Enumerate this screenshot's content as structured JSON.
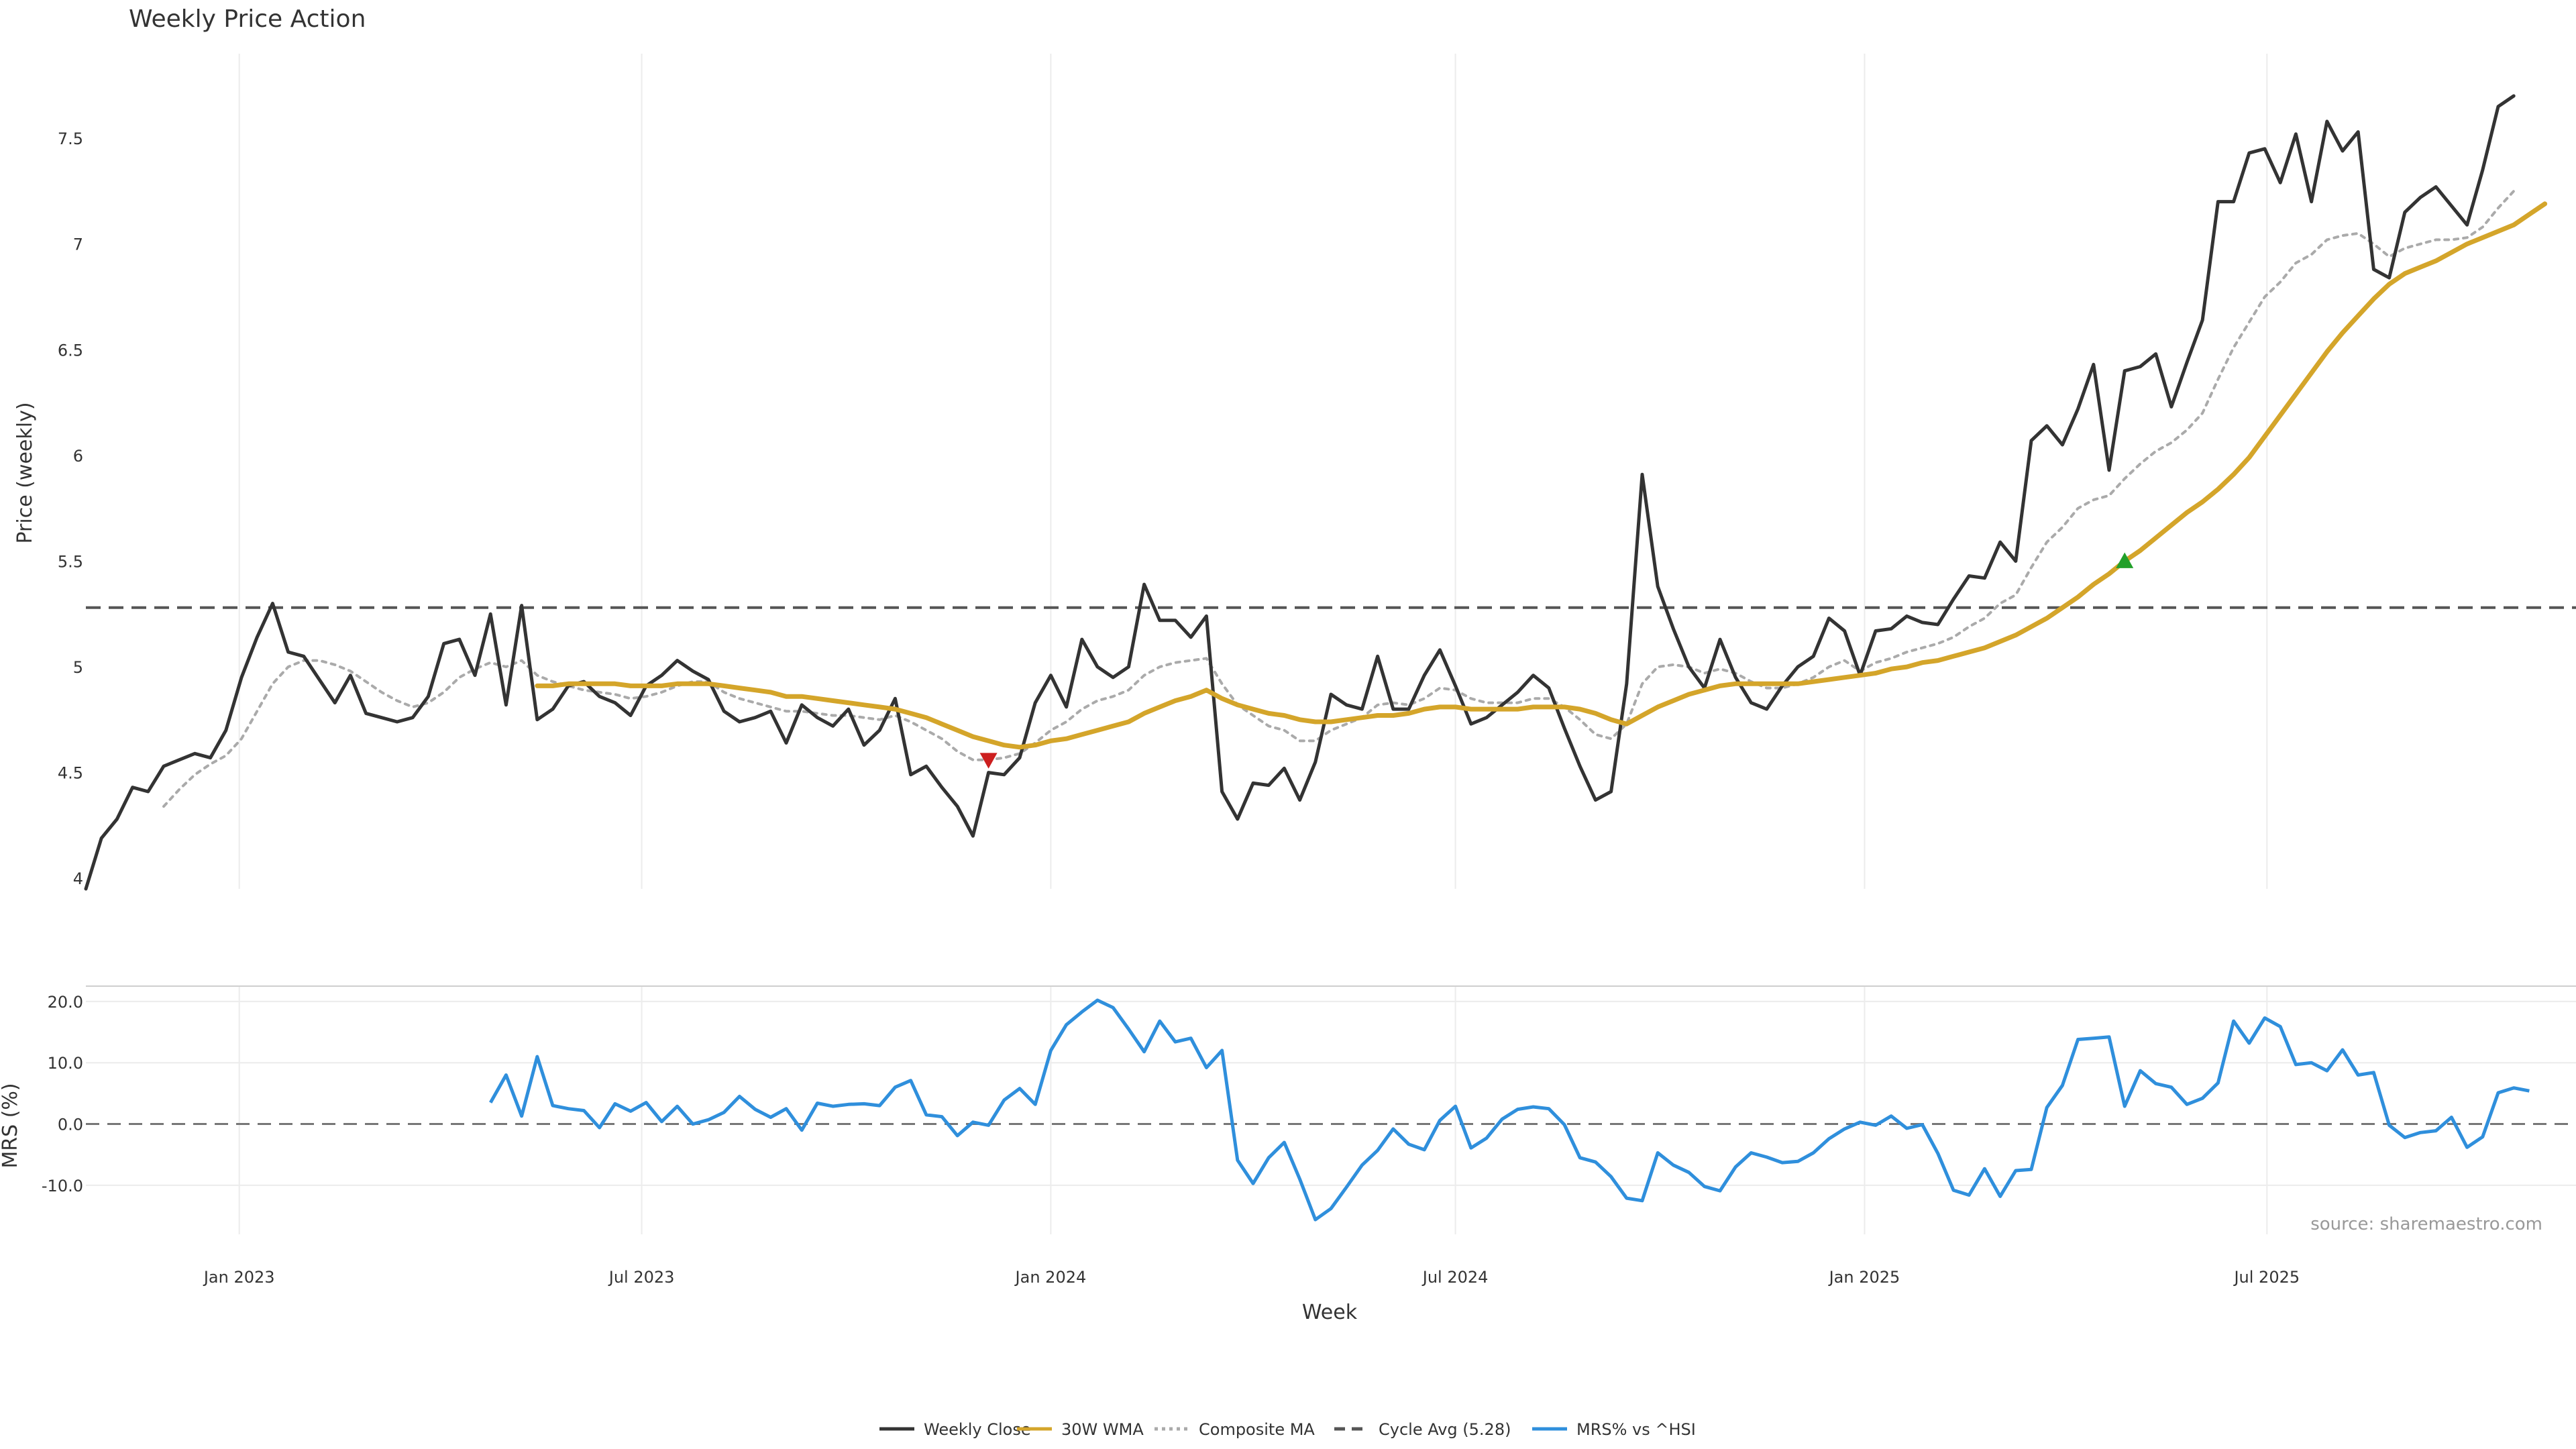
{
  "chart_data": [
    {
      "type": "line",
      "title": "Weekly Price Action",
      "ylabel": "Price (weekly)",
      "xlabel": "Week",
      "ylim": [
        3.95,
        7.9
      ],
      "x_range": [
        "2022-10-24",
        "2025-11-17"
      ],
      "yticks": [
        {
          "value": 4,
          "label": "4"
        },
        {
          "value": 4.5,
          "label": "4.5"
        },
        {
          "value": 5,
          "label": "5"
        },
        {
          "value": 5.5,
          "label": "5.5"
        },
        {
          "value": 6,
          "label": "6"
        },
        {
          "value": 6.5,
          "label": "6.5"
        },
        {
          "value": 7,
          "label": "7"
        },
        {
          "value": 7.5,
          "label": "7.5"
        }
      ],
      "grid": "vertical at month ticks",
      "reference_line": {
        "name": "Cycle Avg (5.28)",
        "value": 5.28
      },
      "markers": [
        {
          "type": "sell",
          "symbol": "triangle-down",
          "color": "#cc1f1f",
          "date": "2023-12-04",
          "value": 4.56
        },
        {
          "type": "buy",
          "symbol": "triangle-up",
          "color": "#22a02a",
          "date": "2025-04-28",
          "value": 5.5
        }
      ],
      "start_date": "2022-10-24",
      "series": [
        {
          "name": "Weekly Close",
          "color": "#333333",
          "values": [
            3.95,
            4.19,
            4.28,
            4.43,
            4.41,
            4.53,
            4.56,
            4.59,
            4.57,
            4.7,
            4.95,
            5.14,
            5.3,
            5.07,
            5.05,
            4.94,
            4.83,
            4.96,
            4.78,
            4.76,
            4.74,
            4.76,
            4.86,
            5.11,
            5.13,
            4.96,
            5.25,
            4.82,
            5.29,
            4.75,
            4.8,
            4.91,
            4.93,
            4.86,
            4.83,
            4.77,
            4.91,
            4.96,
            5.03,
            4.98,
            4.94,
            4.79,
            4.74,
            4.76,
            4.79,
            4.64,
            4.82,
            4.76,
            4.72,
            4.8,
            4.63,
            4.7,
            4.85,
            4.49,
            4.53,
            4.43,
            4.34,
            4.2,
            4.5,
            4.49,
            4.57,
            4.83,
            4.96,
            4.81,
            5.13,
            5.0,
            4.95,
            5.0,
            5.39,
            5.22,
            5.22,
            5.14,
            5.24,
            4.41,
            4.28,
            4.45,
            4.44,
            4.52,
            4.37,
            4.55,
            4.87,
            4.82,
            4.8,
            5.05,
            4.8,
            4.8,
            4.96,
            5.08,
            4.91,
            4.73,
            4.76,
            4.82,
            4.88,
            4.96,
            4.9,
            4.71,
            4.53,
            4.37,
            4.41,
            4.92,
            5.91,
            5.38,
            5.18,
            5.0,
            4.9,
            5.13,
            4.95,
            4.83,
            4.8,
            4.91,
            5.0,
            5.05,
            5.23,
            5.17,
            4.96,
            5.17,
            5.18,
            5.24,
            5.21,
            5.2,
            5.32,
            5.43,
            5.42,
            5.59,
            5.5,
            6.07,
            6.14,
            6.05,
            6.22,
            6.43,
            5.93,
            6.4,
            6.42,
            6.48,
            6.23,
            6.44,
            6.64,
            7.2,
            7.2,
            7.43,
            7.45,
            7.29,
            7.52,
            7.2,
            7.58,
            7.44,
            7.53,
            6.88,
            6.84,
            7.15,
            7.22,
            7.27,
            7.18,
            7.09,
            7.35,
            7.65,
            7.7
          ]
        },
        {
          "name": "30W WMA",
          "color": "#d4a52a",
          "values": [
            null,
            null,
            null,
            null,
            null,
            null,
            null,
            null,
            null,
            null,
            null,
            null,
            null,
            null,
            null,
            null,
            null,
            null,
            null,
            null,
            null,
            null,
            null,
            null,
            null,
            null,
            null,
            null,
            null,
            4.91,
            4.91,
            4.92,
            4.92,
            4.92,
            4.92,
            4.91,
            4.91,
            4.91,
            4.92,
            4.92,
            4.92,
            4.91,
            4.9,
            4.89,
            4.88,
            4.86,
            4.86,
            4.85,
            4.84,
            4.83,
            4.82,
            4.81,
            4.8,
            4.78,
            4.76,
            4.73,
            4.7,
            4.67,
            4.65,
            4.63,
            4.62,
            4.63,
            4.65,
            4.66,
            4.68,
            4.7,
            4.72,
            4.74,
            4.78,
            4.81,
            4.84,
            4.86,
            4.89,
            4.85,
            4.82,
            4.8,
            4.78,
            4.77,
            4.75,
            4.74,
            4.74,
            4.75,
            4.76,
            4.77,
            4.77,
            4.78,
            4.8,
            4.81,
            4.81,
            4.8,
            4.8,
            4.8,
            4.8,
            4.81,
            4.81,
            4.81,
            4.8,
            4.78,
            4.75,
            4.73,
            4.77,
            4.81,
            4.84,
            4.87,
            4.89,
            4.91,
            4.92,
            4.92,
            4.92,
            4.92,
            4.92,
            4.93,
            4.94,
            4.95,
            4.96,
            4.97,
            4.99,
            5.0,
            5.02,
            5.03,
            5.05,
            5.07,
            5.09,
            5.12,
            5.15,
            5.19,
            5.23,
            5.28,
            5.33,
            5.39,
            5.44,
            5.5,
            5.55,
            5.61,
            5.67,
            5.73,
            5.78,
            5.84,
            5.91,
            5.99,
            6.09,
            6.19,
            6.29,
            6.39,
            6.49,
            6.58,
            6.66,
            6.74,
            6.81,
            6.86,
            6.89,
            6.92,
            6.96,
            7.0,
            7.03,
            7.06,
            7.09,
            7.14,
            7.19
          ]
        },
        {
          "name": "Composite MA",
          "color": "#aaaaaa",
          "values": [
            null,
            null,
            null,
            null,
            null,
            4.34,
            4.42,
            4.49,
            4.54,
            4.58,
            4.66,
            4.79,
            4.92,
            5.0,
            5.03,
            5.03,
            5.01,
            4.98,
            4.93,
            4.88,
            4.84,
            4.81,
            4.83,
            4.88,
            4.95,
            4.99,
            5.02,
            5.0,
            5.03,
            4.96,
            4.93,
            4.91,
            4.89,
            4.88,
            4.87,
            4.85,
            4.86,
            4.88,
            4.91,
            4.93,
            4.93,
            4.88,
            4.85,
            4.83,
            4.81,
            4.79,
            4.79,
            4.78,
            4.77,
            4.77,
            4.76,
            4.75,
            4.77,
            4.74,
            4.7,
            4.66,
            4.6,
            4.56,
            4.56,
            4.57,
            4.59,
            4.64,
            4.7,
            4.74,
            4.8,
            4.84,
            4.86,
            4.89,
            4.96,
            5.0,
            5.02,
            5.03,
            5.04,
            4.92,
            4.82,
            4.77,
            4.72,
            4.7,
            4.65,
            4.65,
            4.7,
            4.73,
            4.76,
            4.82,
            4.83,
            4.82,
            4.85,
            4.9,
            4.89,
            4.85,
            4.83,
            4.83,
            4.83,
            4.85,
            4.85,
            4.81,
            4.75,
            4.68,
            4.66,
            4.73,
            4.92,
            5.0,
            5.01,
            5.0,
            4.97,
            4.99,
            4.97,
            4.93,
            4.9,
            4.9,
            4.92,
            4.95,
            5.0,
            5.03,
            4.98,
            5.02,
            5.04,
            5.07,
            5.09,
            5.11,
            5.14,
            5.19,
            5.23,
            5.3,
            5.34,
            5.47,
            5.59,
            5.66,
            5.75,
            5.79,
            5.81,
            5.89,
            5.96,
            6.02,
            6.06,
            6.12,
            6.2,
            6.36,
            6.51,
            6.63,
            6.75,
            6.82,
            6.91,
            6.95,
            7.02,
            7.04,
            7.05,
            7.0,
            6.94,
            6.98,
            7.0,
            7.02,
            7.02,
            7.03,
            7.08,
            7.17,
            7.25
          ]
        }
      ]
    },
    {
      "type": "line",
      "ylabel": "MRS (%)",
      "ylim": [
        -18,
        22.5
      ],
      "yticks": [
        {
          "value": -10,
          "label": "-10.0"
        },
        {
          "value": 0,
          "label": "0.0"
        },
        {
          "value": 10,
          "label": "10.0"
        },
        {
          "value": 20,
          "label": "20.0"
        }
      ],
      "reference_line": {
        "value": 0
      },
      "start_date": "2022-10-24",
      "series": [
        {
          "name": "MRS% vs ^HSI",
          "color": "#2f8fdc",
          "values": [
            null,
            null,
            null,
            null,
            null,
            null,
            null,
            null,
            null,
            null,
            null,
            null,
            null,
            null,
            null,
            null,
            null,
            null,
            null,
            null,
            null,
            null,
            null,
            null,
            null,
            null,
            3.5,
            8.0,
            1.3,
            11.0,
            3.0,
            2.5,
            2.2,
            -0.6,
            3.3,
            2.1,
            3.5,
            0.4,
            2.9,
            0.0,
            0.7,
            1.9,
            4.5,
            2.4,
            1.1,
            2.5,
            -1.0,
            3.4,
            2.9,
            3.2,
            3.3,
            3.0,
            6.0,
            7.1,
            1.5,
            1.2,
            -1.9,
            0.3,
            -0.2,
            3.9,
            5.8,
            3.2,
            12.0,
            16.2,
            18.3,
            20.2,
            19.0,
            15.5,
            11.8,
            16.8,
            13.4,
            14.0,
            9.2,
            12.0,
            -5.9,
            -9.7,
            -5.5,
            -3.0,
            -9.0,
            -15.6,
            -13.8,
            -10.3,
            -6.7,
            -4.3,
            -0.8,
            -3.3,
            -4.2,
            0.6,
            2.9,
            -3.9,
            -2.3,
            0.8,
            2.4,
            2.8,
            2.5,
            -0.1,
            -5.5,
            -6.2,
            -8.6,
            -12.1,
            -12.5,
            -4.7,
            -6.7,
            -7.9,
            -10.2,
            -10.9,
            -7.0,
            -4.7,
            -5.4,
            -6.3,
            -6.1,
            -4.7,
            -2.4,
            -0.8,
            0.3,
            -0.2,
            1.3,
            -0.7,
            -0.1,
            -4.8,
            -10.8,
            -11.6,
            -7.3,
            -11.8,
            -7.6,
            -7.4,
            2.7,
            6.3,
            13.8,
            14.0,
            14.2,
            2.9,
            8.7,
            6.6,
            6.0,
            3.2,
            4.2,
            6.7,
            16.8,
            13.2,
            17.3,
            15.9,
            9.7,
            10.0,
            8.7,
            12.1,
            8.0,
            8.4,
            -0.2,
            -2.2,
            -1.4,
            -1.1,
            1.1,
            -3.8,
            -2.1,
            5.1,
            5.9,
            5.4
          ]
        }
      ]
    }
  ],
  "xticks": [
    {
      "date": "2023-01-01",
      "label": "Jan 2023"
    },
    {
      "date": "2023-07-01",
      "label": "Jul 2023"
    },
    {
      "date": "2024-01-01",
      "label": "Jan 2024"
    },
    {
      "date": "2024-07-01",
      "label": "Jul 2024"
    },
    {
      "date": "2025-01-01",
      "label": "Jan 2025"
    },
    {
      "date": "2025-07-01",
      "label": "Jul 2025"
    }
  ],
  "source": "source: sharemaestro.com",
  "legend": {
    "placement": "bottom-center",
    "items": [
      {
        "label": "Weekly Close",
        "color": "#333333",
        "style": "solid"
      },
      {
        "label": "30W WMA",
        "color": "#d4a52a",
        "style": "solid"
      },
      {
        "label": "Composite MA",
        "color": "#aaaaaa",
        "style": "dotted"
      },
      {
        "label": "Cycle Avg (5.28)",
        "color": "#555555",
        "style": "dashed"
      },
      {
        "label": "MRS% vs ^HSI",
        "color": "#2f8fdc",
        "style": "solid"
      }
    ]
  }
}
